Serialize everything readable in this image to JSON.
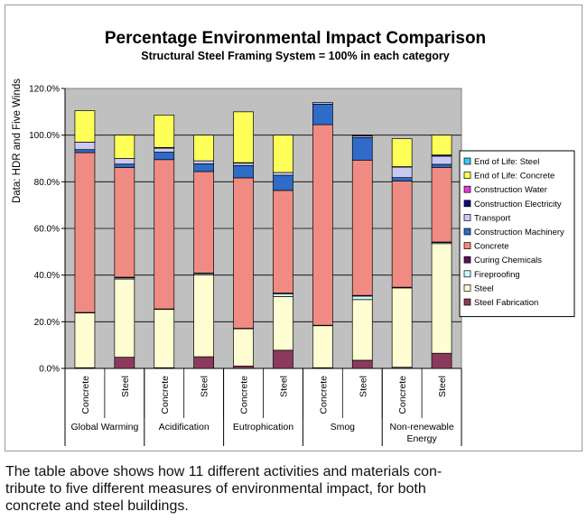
{
  "chart_data": {
    "type": "stacked-bar",
    "title": "Percentage Environmental Impact Comparison",
    "subtitle": "Structural Steel Framing System = 100% in each category",
    "ylabel": "Data: HDR and Five Winds",
    "ylim": [
      0,
      120
    ],
    "yticks": [
      "0.0%",
      "20.0%",
      "40.0%",
      "60.0%",
      "80.0%",
      "100.0%",
      "120.0%"
    ],
    "groups": [
      "Global Warming",
      "Acidification",
      "Eutrophication",
      "Smog",
      "Non-renewable Energy"
    ],
    "bar_labels": [
      "Concrete",
      "Steel"
    ],
    "components": [
      {
        "name": "Steel Fabrication",
        "color": "#8c3a5c"
      },
      {
        "name": "Steel",
        "color": "#fefed2"
      },
      {
        "name": "Fireproofing",
        "color": "#ccfafa"
      },
      {
        "name": "Curing Chemicals",
        "color": "#5e0f5e"
      },
      {
        "name": "Concrete",
        "color": "#f08b83"
      },
      {
        "name": "Construction Machinery",
        "color": "#2f6bc9"
      },
      {
        "name": "Transport",
        "color": "#c9c9f6"
      },
      {
        "name": "Construction Electricity",
        "color": "#0b0b7d"
      },
      {
        "name": "Construction Water",
        "color": "#e53ad8"
      },
      {
        "name": "End of Life: Concrete",
        "color": "#ffff5a"
      },
      {
        "name": "End of Life: Steel",
        "color": "#3cc9f0"
      }
    ],
    "legend_order_top_to_bottom": [
      "End of Life: Steel",
      "End of Life: Concrete",
      "Construction Water",
      "Construction Electricity",
      "Transport",
      "Construction Machinery",
      "Concrete",
      "Curing Chemicals",
      "Fireproofing",
      "Steel",
      "Steel Fabrication"
    ],
    "series_values": [
      {
        "group": "Global Warming",
        "bar": "Concrete",
        "values": [
          0.3,
          23.5,
          0,
          0.2,
          68.5,
          1.3,
          3.2,
          0,
          0,
          13.5,
          0
        ]
      },
      {
        "group": "Global Warming",
        "bar": "Steel",
        "values": [
          4.8,
          33.5,
          0.5,
          0.3,
          47.0,
          1.5,
          2.4,
          0,
          0,
          10.0,
          0
        ]
      },
      {
        "group": "Acidification",
        "bar": "Concrete",
        "values": [
          0.3,
          25.0,
          0,
          0.2,
          64.0,
          3.2,
          1.7,
          0.3,
          0,
          13.9,
          0
        ]
      },
      {
        "group": "Acidification",
        "bar": "Steel",
        "values": [
          5.0,
          35.0,
          0.6,
          0.3,
          43.5,
          3.3,
          1.3,
          0,
          0,
          11.0,
          0
        ]
      },
      {
        "group": "Eutrophication",
        "bar": "Concrete",
        "values": [
          1.0,
          16.0,
          0,
          0.2,
          64.5,
          5.3,
          1.0,
          0.2,
          0,
          21.8,
          0
        ]
      },
      {
        "group": "Eutrophication",
        "bar": "Steel",
        "values": [
          7.8,
          23.0,
          1.2,
          0.3,
          44.0,
          6.5,
          1.2,
          0,
          0,
          16.0,
          0
        ]
      },
      {
        "group": "Smog",
        "bar": "Concrete",
        "values": [
          0.3,
          18.0,
          0,
          0.2,
          86.0,
          8.8,
          0.7,
          0,
          0,
          0,
          0
        ]
      },
      {
        "group": "Smog",
        "bar": "Steel",
        "values": [
          3.5,
          26.0,
          1.5,
          0.3,
          58.0,
          9.7,
          0.7,
          0.3,
          0,
          0,
          0
        ]
      },
      {
        "group": "Non-renewable Energy",
        "bar": "Concrete",
        "values": [
          0.5,
          34.0,
          0,
          0.3,
          45.5,
          1.5,
          4.5,
          0.2,
          0,
          12.0,
          0
        ]
      },
      {
        "group": "Non-renewable Energy",
        "bar": "Steel",
        "values": [
          6.5,
          47.0,
          0.5,
          0.2,
          32.0,
          1.3,
          3.5,
          0.5,
          0,
          8.5,
          0
        ]
      }
    ]
  },
  "caption": "The table above shows how 11 different activities and materials contribute to five different measures of environmental impact, for both concrete and steel buildings.",
  "caption_lines": [
    "The table above shows how 11 different activities and materials con-",
    "tribute to five different measures of environmental impact, for both",
    "concrete and steel buildings."
  ]
}
